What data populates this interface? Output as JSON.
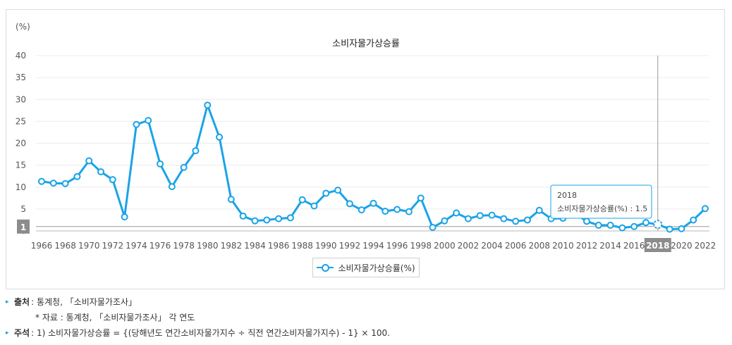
{
  "chart": {
    "unit": "(%)",
    "title": "소비자물가상승률",
    "legend_label": "소비자물가상승률(%)",
    "reference_line_label": "1",
    "highlight_year": "2018",
    "tooltip": {
      "year": "2018",
      "text": "소비자물가상승률(%) : 1.5"
    }
  },
  "chart_data": {
    "type": "line",
    "title": "소비자물가상승률",
    "ylabel": "(%)",
    "ylim": [
      0,
      40
    ],
    "yticks": [
      0,
      5,
      10,
      15,
      20,
      25,
      30,
      35,
      40
    ],
    "grid": true,
    "legend_position": "bottom",
    "reference_line": 1,
    "color": "#1aa3e8",
    "x": [
      1966,
      1967,
      1968,
      1969,
      1970,
      1971,
      1972,
      1973,
      1974,
      1975,
      1976,
      1977,
      1978,
      1979,
      1980,
      1981,
      1982,
      1983,
      1984,
      1985,
      1986,
      1987,
      1988,
      1989,
      1990,
      1991,
      1992,
      1993,
      1994,
      1995,
      1996,
      1997,
      1998,
      1999,
      2000,
      2001,
      2002,
      2003,
      2004,
      2005,
      2006,
      2007,
      2008,
      2009,
      2010,
      2011,
      2012,
      2013,
      2014,
      2015,
      2016,
      2017,
      2018,
      2019,
      2020,
      2021,
      2022
    ],
    "x_tick_labels": [
      "1966",
      "1968",
      "1970",
      "1972",
      "1974",
      "1976",
      "1978",
      "1980",
      "1982",
      "1984",
      "1986",
      "1988",
      "1990",
      "1992",
      "1994",
      "1996",
      "1998",
      "2000",
      "2002",
      "2004",
      "2006",
      "2008",
      "2010",
      "2012",
      "2014",
      "2016",
      "2018",
      "2020",
      "2022"
    ],
    "series": [
      {
        "name": "소비자물가상승률(%)",
        "values": [
          11.3,
          10.9,
          10.8,
          12.4,
          16.0,
          13.5,
          11.7,
          3.2,
          24.3,
          25.2,
          15.3,
          10.1,
          14.5,
          18.3,
          28.7,
          21.4,
          7.2,
          3.4,
          2.3,
          2.5,
          2.8,
          3.0,
          7.1,
          5.7,
          8.6,
          9.3,
          6.2,
          4.8,
          6.3,
          4.5,
          4.9,
          4.4,
          7.5,
          0.8,
          2.3,
          4.1,
          2.8,
          3.5,
          3.6,
          2.8,
          2.2,
          2.5,
          4.7,
          2.8,
          2.9,
          4.0,
          2.2,
          1.3,
          1.3,
          0.7,
          1.0,
          1.9,
          1.5,
          0.4,
          0.5,
          2.5,
          5.1
        ]
      }
    ]
  },
  "notes": {
    "source_key": "출처",
    "source_text": ": 통계청, 「소비자물가조사」",
    "material_text": "* 자료 : 통계청, 「소비자물가조사」 각 연도",
    "footnote_key": "주석",
    "footnote_text": ": 1) 소비자물가상승률 = {(당해년도 연간소비자물가지수 ÷ 직전 연간소비자물가지수) - 1} × 100."
  }
}
